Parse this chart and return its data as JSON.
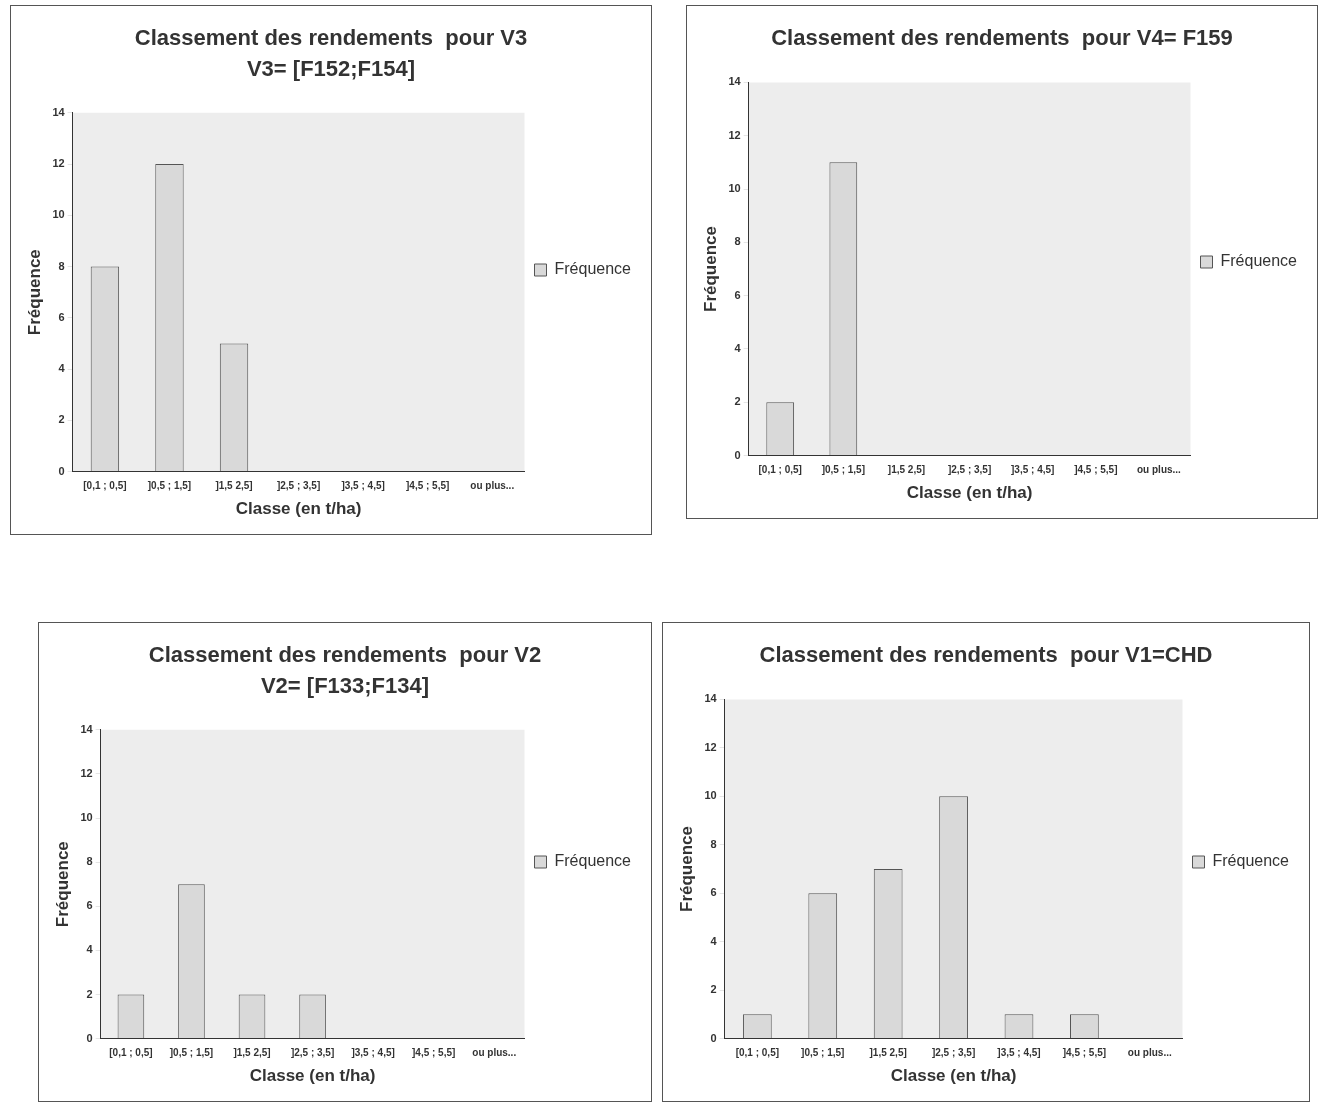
{
  "chart_data": [
    {
      "type": "bar",
      "title": "Classement des rendements  pour V3",
      "subtitle": "V3= [F152;F154]",
      "xlabel": "Classe (en t/ha)",
      "ylabel": "Fréquence",
      "categories": [
        "[0,1 ; 0,5]",
        "]0,5 ; 1,5]",
        "]1,5 2,5]",
        "]2,5 ; 3,5]",
        "]3,5 ; 4,5]",
        "]4,5 ; 5,5]",
        "ou plus..."
      ],
      "series": [
        {
          "name": "Fréquence",
          "color": "#d9d9d9",
          "values": [
            8,
            12,
            5,
            0,
            0,
            0,
            0
          ]
        }
      ],
      "ylim": [
        0,
        14
      ],
      "yticks": [
        0,
        2,
        4,
        6,
        8,
        10,
        12,
        14
      ],
      "legend": "right"
    },
    {
      "type": "bar",
      "title": "Classement des rendements  pour V4= F159",
      "xlabel": "Classe (en t/ha)",
      "ylabel": "Fréquence",
      "categories": [
        "[0,1 ; 0,5]",
        "]0,5 ; 1,5]",
        "]1,5 2,5]",
        "]2,5 ; 3,5]",
        "]3,5 ; 4,5]",
        "]4,5 ; 5,5]",
        "ou plus..."
      ],
      "series": [
        {
          "name": "Fréquence",
          "color": "#d9d9d9",
          "values": [
            2,
            11,
            0,
            0,
            0,
            0,
            0
          ]
        }
      ],
      "ylim": [
        0,
        14
      ],
      "yticks": [
        0,
        2,
        4,
        6,
        8,
        10,
        12,
        14
      ],
      "legend": "right"
    },
    {
      "type": "bar",
      "title": "Classement des rendements  pour V2",
      "subtitle": "V2= [F133;F134]",
      "xlabel": "Classe (en t/ha)",
      "ylabel": "Fréquence",
      "categories": [
        "[0,1 ; 0,5]",
        "]0,5 ; 1,5]",
        "]1,5 2,5]",
        "]2,5 ; 3,5]",
        "]3,5 ; 4,5]",
        "]4,5 ; 5,5]",
        "ou plus..."
      ],
      "series": [
        {
          "name": "Fréquence",
          "color": "#d9d9d9",
          "values": [
            2,
            7,
            2,
            2,
            0,
            0,
            0
          ]
        }
      ],
      "ylim": [
        0,
        14
      ],
      "yticks": [
        0,
        2,
        4,
        6,
        8,
        10,
        12,
        14
      ],
      "legend": "right"
    },
    {
      "type": "bar",
      "title": "Classement des rendements  pour V1=CHD",
      "xlabel": "Classe (en t/ha)",
      "ylabel": "Fréquence",
      "categories": [
        "[0,1 ; 0,5]",
        "]0,5 ; 1,5]",
        "]1,5 2,5]",
        "]2,5 ; 3,5]",
        "]3,5 ; 4,5]",
        "]4,5 ; 5,5]",
        "ou plus..."
      ],
      "series": [
        {
          "name": "Fréquence",
          "color": "#d9d9d9",
          "values": [
            1,
            6,
            7,
            10,
            1,
            1,
            0
          ]
        }
      ],
      "ylim": [
        0,
        14
      ],
      "yticks": [
        0,
        2,
        4,
        6,
        8,
        10,
        12,
        14
      ],
      "legend": "right"
    }
  ]
}
